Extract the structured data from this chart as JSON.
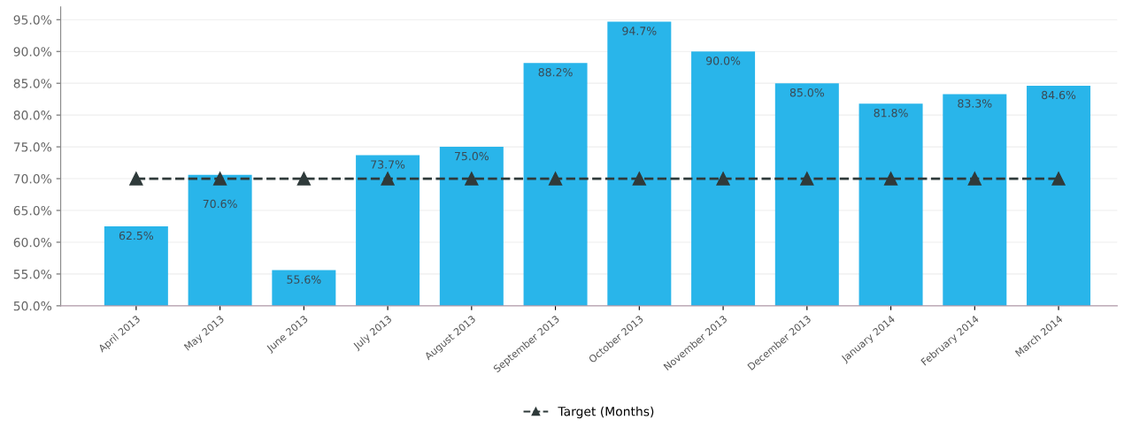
{
  "chart_data": {
    "type": "bar",
    "categories": [
      "April 2013",
      "May 2013",
      "June 2013",
      "July 2013",
      "August 2013",
      "September 2013",
      "October 2013",
      "November 2013",
      "December 2013",
      "January 2014",
      "February 2014",
      "March 2014"
    ],
    "series": [
      {
        "color": "#29b5ea",
        "values": [
          62.5,
          70.6,
          55.6,
          73.7,
          75.0,
          88.2,
          94.7,
          90.0,
          85.0,
          81.8,
          83.3,
          84.6
        ],
        "value_labels": [
          "62.5%",
          "70.6%",
          "55.6%",
          "73.7%",
          "75.0%",
          "88.2%",
          "94.7%",
          "90.0%",
          "85.0%",
          "81.8%",
          "83.3%",
          "84.6%"
        ]
      },
      {
        "type": "line",
        "name": "Target (Months)",
        "color": "#2f3a3a",
        "marker": "triangle",
        "line_style": "dashed",
        "values": [
          70,
          70,
          70,
          70,
          70,
          70,
          70,
          70,
          70,
          70,
          70,
          70
        ]
      }
    ],
    "ylim": [
      50,
      97
    ],
    "yticks": [
      {
        "value": 50,
        "label": "50.0%"
      },
      {
        "value": 55,
        "label": "55.0%"
      },
      {
        "value": 60,
        "label": "60.0%"
      },
      {
        "value": 65,
        "label": "65.0%"
      },
      {
        "value": 70,
        "label": "70.0%"
      },
      {
        "value": 75,
        "label": "75.0%"
      },
      {
        "value": 80,
        "label": "80.0%"
      },
      {
        "value": 85,
        "label": "85.0%"
      },
      {
        "value": 90,
        "label": "90.0%"
      },
      {
        "value": 95,
        "label": "95.0%"
      }
    ],
    "grid": "y",
    "legend": "bottom"
  }
}
